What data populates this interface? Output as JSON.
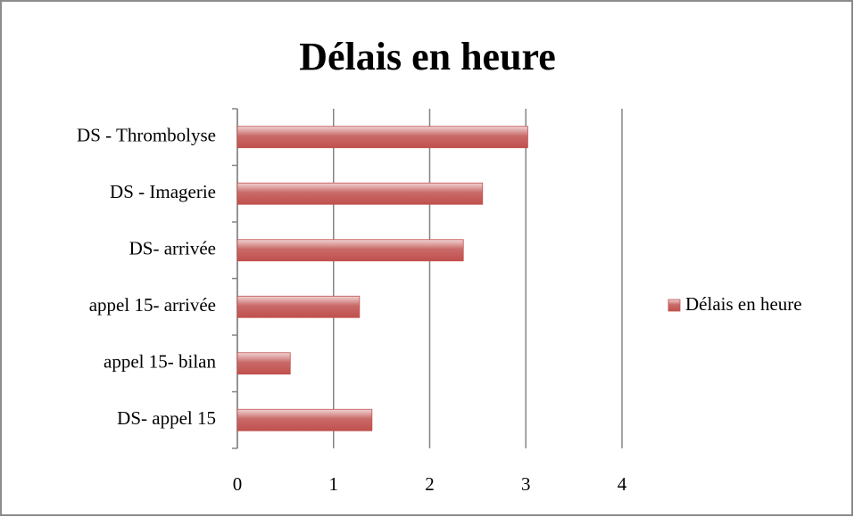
{
  "chart_data": {
    "type": "bar",
    "orientation": "horizontal",
    "title": "Délais en heure",
    "categories": [
      "DS - Thrombolyse",
      "DS - Imagerie",
      "DS- arrivée",
      "appel 15- arrivée",
      "appel 15- bilan",
      "DS- appel 15"
    ],
    "series": [
      {
        "name": "Délais en heure",
        "color": "#c0504d",
        "values": [
          3.02,
          2.55,
          2.35,
          1.27,
          0.55,
          1.4
        ]
      }
    ],
    "xlim": [
      0,
      4
    ],
    "xticks": [
      0,
      1,
      2,
      3,
      4
    ],
    "grid": true,
    "legend": "right"
  }
}
